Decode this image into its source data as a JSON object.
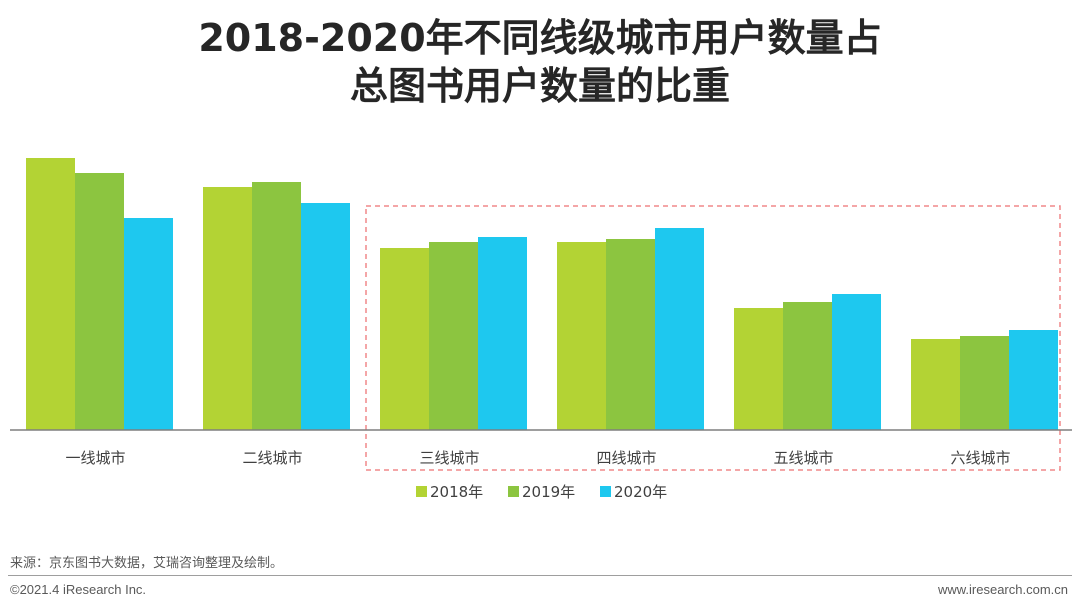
{
  "title": {
    "line1": "2018-2020年不同线级城市用户数量占",
    "line2": "总图书用户数量的比重"
  },
  "chart_data": {
    "type": "bar",
    "title": "2018-2020年不同线级城市用户数量占总图书用户数量的比重",
    "xlabel": "",
    "ylabel": "",
    "categories": [
      "一线城市",
      "二线城市",
      "三线城市",
      "四线城市",
      "五线城市",
      "六线城市"
    ],
    "series": [
      {
        "name": "2018年",
        "color": "#b3d334",
        "values": [
          27.2,
          24.3,
          18.2,
          18.8,
          12.2,
          9.1
        ]
      },
      {
        "name": "2019年",
        "color": "#8cc540",
        "values": [
          25.7,
          24.8,
          18.8,
          19.1,
          12.8,
          9.4
        ]
      },
      {
        "name": "2020年",
        "color": "#1ec8ef",
        "values": [
          21.2,
          22.7,
          19.3,
          20.2,
          13.6,
          10.0
        ]
      }
    ],
    "ylim": [
      0,
      28
    ],
    "grid": false,
    "legend": "bottom",
    "highlight": {
      "from_category": 2,
      "to_category": 5,
      "style": "dashed",
      "color": "#f0888a"
    }
  },
  "source_note": "来源：京东图书大数据，艾瑞咨询整理及绘制。",
  "footer": {
    "copyright": "©2021.4 iResearch Inc.",
    "website": "www.iresearch.com.cn"
  }
}
